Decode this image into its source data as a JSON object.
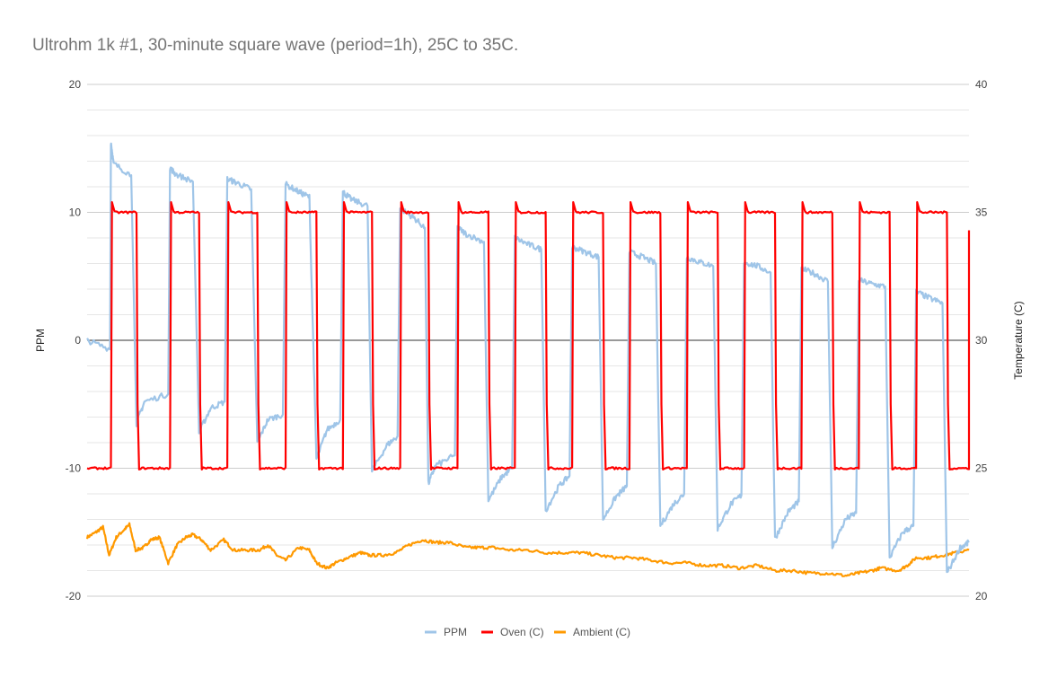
{
  "chart_data": {
    "type": "line",
    "title": "Ultrohm 1k #1, 30-minute square wave (period=1h), 25C to 35C.",
    "ylabel": "PPM",
    "y2label": "Temperature (C)",
    "ylim": [
      -20,
      20
    ],
    "y2lim": [
      20,
      40
    ],
    "yticks": [
      "20",
      "10",
      "0",
      "-10",
      "-20"
    ],
    "y2ticks": [
      "40",
      "35",
      "30",
      "25",
      "20"
    ],
    "grid": true,
    "legend_position": "bottom",
    "cycles": 15,
    "series": [
      {
        "name": "PPM",
        "axis": "left",
        "color": "#9fc5e8",
        "description": "Resistance change in PPM; jumps up on heating and down on cooling, drifting downward over time",
        "points": [
          [
            0.0,
            0.0
          ],
          [
            0.26,
            -0.7
          ],
          [
            0.27,
            15.5
          ],
          [
            0.3,
            13.8
          ],
          [
            0.5,
            12.9
          ],
          [
            0.56,
            -6.5
          ],
          [
            0.65,
            -4.8
          ],
          [
            0.92,
            -4.2
          ],
          [
            0.94,
            13.5
          ],
          [
            1.0,
            13.0
          ],
          [
            1.2,
            12.4
          ],
          [
            1.27,
            -7.2
          ],
          [
            1.4,
            -5.3
          ],
          [
            1.56,
            -4.8
          ],
          [
            1.59,
            12.6
          ],
          [
            1.7,
            12.3
          ],
          [
            1.86,
            11.8
          ],
          [
            1.93,
            -8.0
          ],
          [
            2.05,
            -6.2
          ],
          [
            2.22,
            -5.8
          ],
          [
            2.25,
            12.2
          ],
          [
            2.4,
            11.6
          ],
          [
            2.52,
            11.2
          ],
          [
            2.6,
            -9.3
          ],
          [
            2.72,
            -7.0
          ],
          [
            2.87,
            -6.2
          ],
          [
            2.9,
            11.6
          ],
          [
            3.0,
            11.0
          ],
          [
            3.18,
            10.5
          ],
          [
            3.23,
            -10.2
          ],
          [
            3.4,
            -8.2
          ],
          [
            3.52,
            -7.5
          ],
          [
            3.55,
            10.3
          ],
          [
            3.7,
            9.6
          ],
          [
            3.83,
            8.8
          ],
          [
            3.87,
            -11.2
          ],
          [
            3.95,
            -9.8
          ],
          [
            4.17,
            -9.0
          ],
          [
            4.2,
            8.8
          ],
          [
            4.3,
            8.3
          ],
          [
            4.5,
            7.7
          ],
          [
            4.55,
            -12.5
          ],
          [
            4.7,
            -10.7
          ],
          [
            4.82,
            -10.0
          ],
          [
            4.85,
            8.0
          ],
          [
            5.0,
            7.5
          ],
          [
            5.15,
            7.1
          ],
          [
            5.2,
            -13.3
          ],
          [
            5.35,
            -11.4
          ],
          [
            5.47,
            -10.6
          ],
          [
            5.5,
            7.3
          ],
          [
            5.65,
            6.9
          ],
          [
            5.8,
            6.5
          ],
          [
            5.85,
            -14.0
          ],
          [
            6.0,
            -12.2
          ],
          [
            6.12,
            -11.4
          ],
          [
            6.15,
            6.9
          ],
          [
            6.3,
            6.5
          ],
          [
            6.45,
            6.0
          ],
          [
            6.5,
            -14.5
          ],
          [
            6.65,
            -12.8
          ],
          [
            6.77,
            -12.0
          ],
          [
            6.8,
            6.5
          ],
          [
            6.95,
            6.1
          ],
          [
            7.1,
            5.8
          ],
          [
            7.15,
            -14.7
          ],
          [
            7.3,
            -12.8
          ],
          [
            7.42,
            -12.1
          ],
          [
            7.45,
            6.1
          ],
          [
            7.6,
            5.8
          ],
          [
            7.75,
            5.3
          ],
          [
            7.8,
            -15.5
          ],
          [
            7.95,
            -13.4
          ],
          [
            8.07,
            -12.6
          ],
          [
            8.1,
            5.6
          ],
          [
            8.25,
            5.2
          ],
          [
            8.4,
            4.6
          ],
          [
            8.45,
            -16.2
          ],
          [
            8.6,
            -14.0
          ],
          [
            8.72,
            -13.5
          ],
          [
            8.75,
            4.7
          ],
          [
            8.9,
            4.4
          ],
          [
            9.05,
            4.2
          ],
          [
            9.1,
            -17.0
          ],
          [
            9.25,
            -15.0
          ],
          [
            9.37,
            -14.5
          ],
          [
            9.4,
            3.8
          ],
          [
            9.55,
            3.3
          ],
          [
            9.7,
            2.9
          ],
          [
            9.75,
            -18.2
          ],
          [
            9.9,
            -16.2
          ],
          [
            10.0,
            -15.8
          ]
        ]
      },
      {
        "name": "Oven (C)",
        "axis": "right",
        "color": "#ff0000",
        "description": "Square wave between 25C and 35C, 15 cycles, slight overshoot on rising edges",
        "low": 25,
        "high": 35,
        "overshoot": 35.4,
        "rise_times": [
          0.27,
          0.94,
          1.59,
          2.25,
          2.9,
          3.55,
          4.2,
          4.85,
          5.5,
          6.15,
          6.8,
          7.45,
          8.1,
          8.75,
          9.4,
          10.0
        ],
        "fall_times": [
          0.56,
          1.27,
          1.93,
          2.6,
          3.23,
          3.87,
          4.55,
          5.2,
          5.85,
          6.5,
          7.15,
          7.8,
          8.45,
          9.1,
          9.75
        ],
        "end_value": 34.3
      },
      {
        "name": "Ambient (C)",
        "axis": "right",
        "color": "#ff9900",
        "description": "Ambient temperature slowly varying around 21-23C",
        "points": [
          [
            0.0,
            22.3
          ],
          [
            0.1,
            22.5
          ],
          [
            0.18,
            22.7
          ],
          [
            0.25,
            21.6
          ],
          [
            0.33,
            22.3
          ],
          [
            0.42,
            22.6
          ],
          [
            0.48,
            22.8
          ],
          [
            0.55,
            21.8
          ],
          [
            0.64,
            21.9
          ],
          [
            0.72,
            22.2
          ],
          [
            0.82,
            22.3
          ],
          [
            0.92,
            21.3
          ],
          [
            1.02,
            22.0
          ],
          [
            1.12,
            22.3
          ],
          [
            1.2,
            22.4
          ],
          [
            1.3,
            22.2
          ],
          [
            1.4,
            21.8
          ],
          [
            1.55,
            22.2
          ],
          [
            1.66,
            21.8
          ],
          [
            1.8,
            21.8
          ],
          [
            1.95,
            21.8
          ],
          [
            2.05,
            22.0
          ],
          [
            2.15,
            21.6
          ],
          [
            2.25,
            21.4
          ],
          [
            2.4,
            21.9
          ],
          [
            2.52,
            21.8
          ],
          [
            2.6,
            21.3
          ],
          [
            2.72,
            21.1
          ],
          [
            2.82,
            21.3
          ],
          [
            2.95,
            21.5
          ],
          [
            3.1,
            21.7
          ],
          [
            3.2,
            21.6
          ],
          [
            3.35,
            21.6
          ],
          [
            3.5,
            21.7
          ],
          [
            3.65,
            22.0
          ],
          [
            3.8,
            22.2
          ],
          [
            3.95,
            22.1
          ],
          [
            4.1,
            22.1
          ],
          [
            4.3,
            21.9
          ],
          [
            4.45,
            21.9
          ],
          [
            4.6,
            21.9
          ],
          [
            4.8,
            21.8
          ],
          [
            5.0,
            21.8
          ],
          [
            5.2,
            21.7
          ],
          [
            5.4,
            21.7
          ],
          [
            5.6,
            21.7
          ],
          [
            5.8,
            21.6
          ],
          [
            6.0,
            21.5
          ],
          [
            6.2,
            21.5
          ],
          [
            6.4,
            21.4
          ],
          [
            6.6,
            21.3
          ],
          [
            6.8,
            21.3
          ],
          [
            7.0,
            21.2
          ],
          [
            7.2,
            21.2
          ],
          [
            7.4,
            21.1
          ],
          [
            7.6,
            21.2
          ],
          [
            7.8,
            21.0
          ],
          [
            8.0,
            21.0
          ],
          [
            8.2,
            20.9
          ],
          [
            8.4,
            20.9
          ],
          [
            8.6,
            20.8
          ],
          [
            8.75,
            20.9
          ],
          [
            8.9,
            21.0
          ],
          [
            9.0,
            21.1
          ],
          [
            9.2,
            21.0
          ],
          [
            9.3,
            21.2
          ],
          [
            9.4,
            21.5
          ],
          [
            9.55,
            21.5
          ],
          [
            9.7,
            21.6
          ],
          [
            9.85,
            21.7
          ],
          [
            10.0,
            21.8
          ]
        ]
      }
    ]
  }
}
